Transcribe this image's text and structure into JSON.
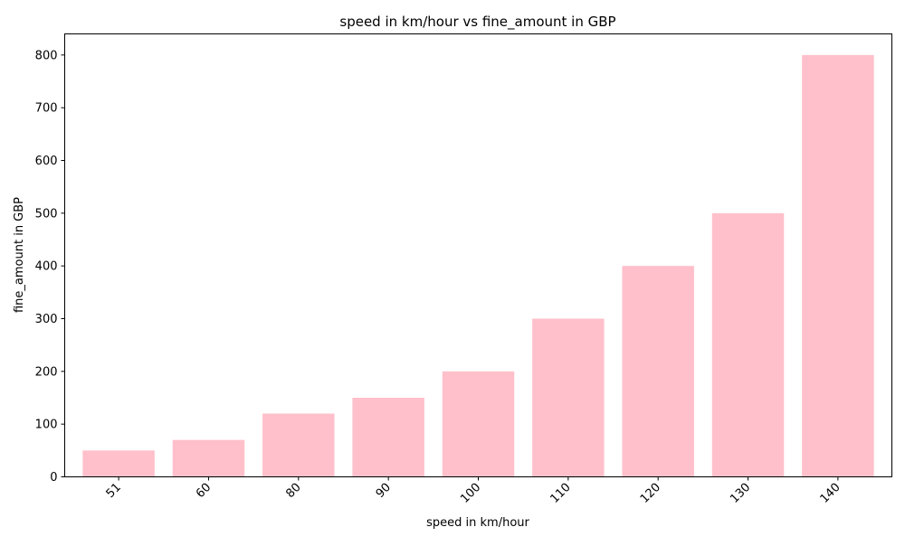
{
  "chart_data": {
    "type": "bar",
    "title": "speed in km/hour vs fine_amount in GBP",
    "xlabel": "speed in km/hour",
    "ylabel": "fine_amount in GBP",
    "categories": [
      "51",
      "60",
      "80",
      "90",
      "100",
      "110",
      "120",
      "130",
      "140"
    ],
    "values": [
      50,
      70,
      120,
      150,
      200,
      300,
      400,
      500,
      800
    ],
    "ylim": [
      0,
      840
    ],
    "yticks": [
      0,
      100,
      200,
      300,
      400,
      500,
      600,
      700,
      800
    ],
    "bar_color": "#ffc0cb",
    "grid": false,
    "legend": "none"
  }
}
